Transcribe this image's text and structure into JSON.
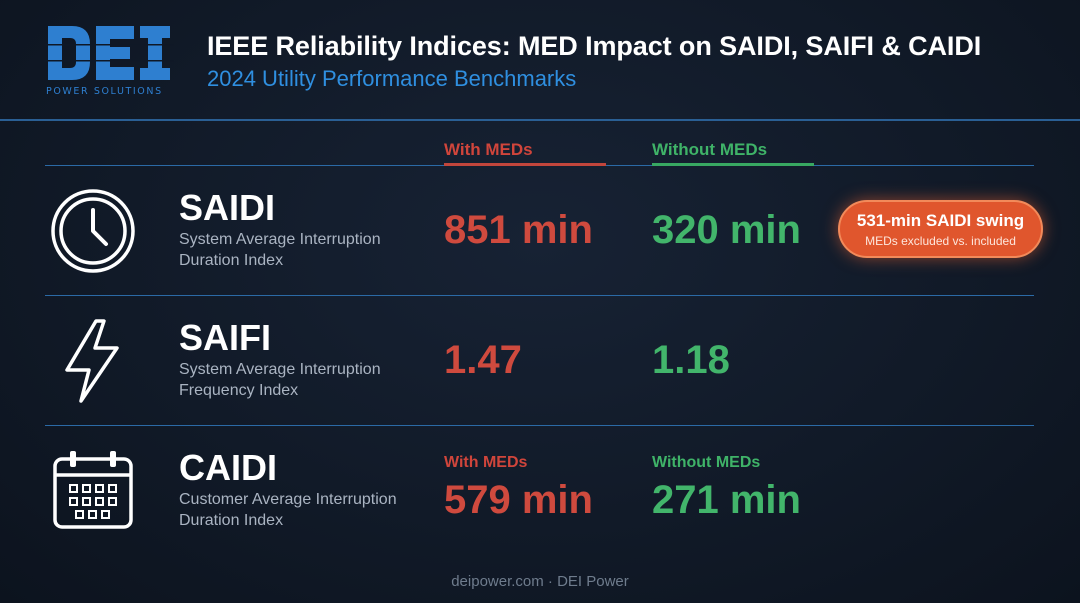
{
  "header": {
    "logo_text": "DEI",
    "logo_subtext": "POWER SOLUTIONS",
    "title": "IEEE Reliability Indices: MED Impact on SAIDI, SAIFI & CAIDI",
    "subtitle": "2024 Utility Performance Benchmarks"
  },
  "columns": {
    "with_meds": "With MEDs",
    "without_meds": "Without MEDs"
  },
  "metrics": [
    {
      "name": "SAIDI",
      "description": "System Average Interruption Duration Index",
      "with_meds": "851 min",
      "without_meds": "320 min",
      "icon": "clock-icon"
    },
    {
      "name": "SAIFI",
      "description": "System Average Interruption Frequency Index",
      "with_meds": "1.47",
      "without_meds": "1.18",
      "icon": "lightning-icon"
    },
    {
      "name": "CAIDI",
      "description": "Customer Average Interruption Duration Index",
      "with_meds_label": "With MEDs",
      "without_meds_label": "Without MEDs",
      "with_meds": "579 min",
      "without_meds": "271 min",
      "icon": "calendar-icon"
    }
  ],
  "callout": {
    "title": "531-min SAIDI swing",
    "subtitle": "MEDs excluded vs. included"
  },
  "footer": "deipower.com · DEI Power",
  "colors": {
    "with_meds": "#cf4a3e",
    "without_meds": "#42b56b",
    "accent_blue": "#2f8fe0",
    "callout": "#e0562d"
  }
}
